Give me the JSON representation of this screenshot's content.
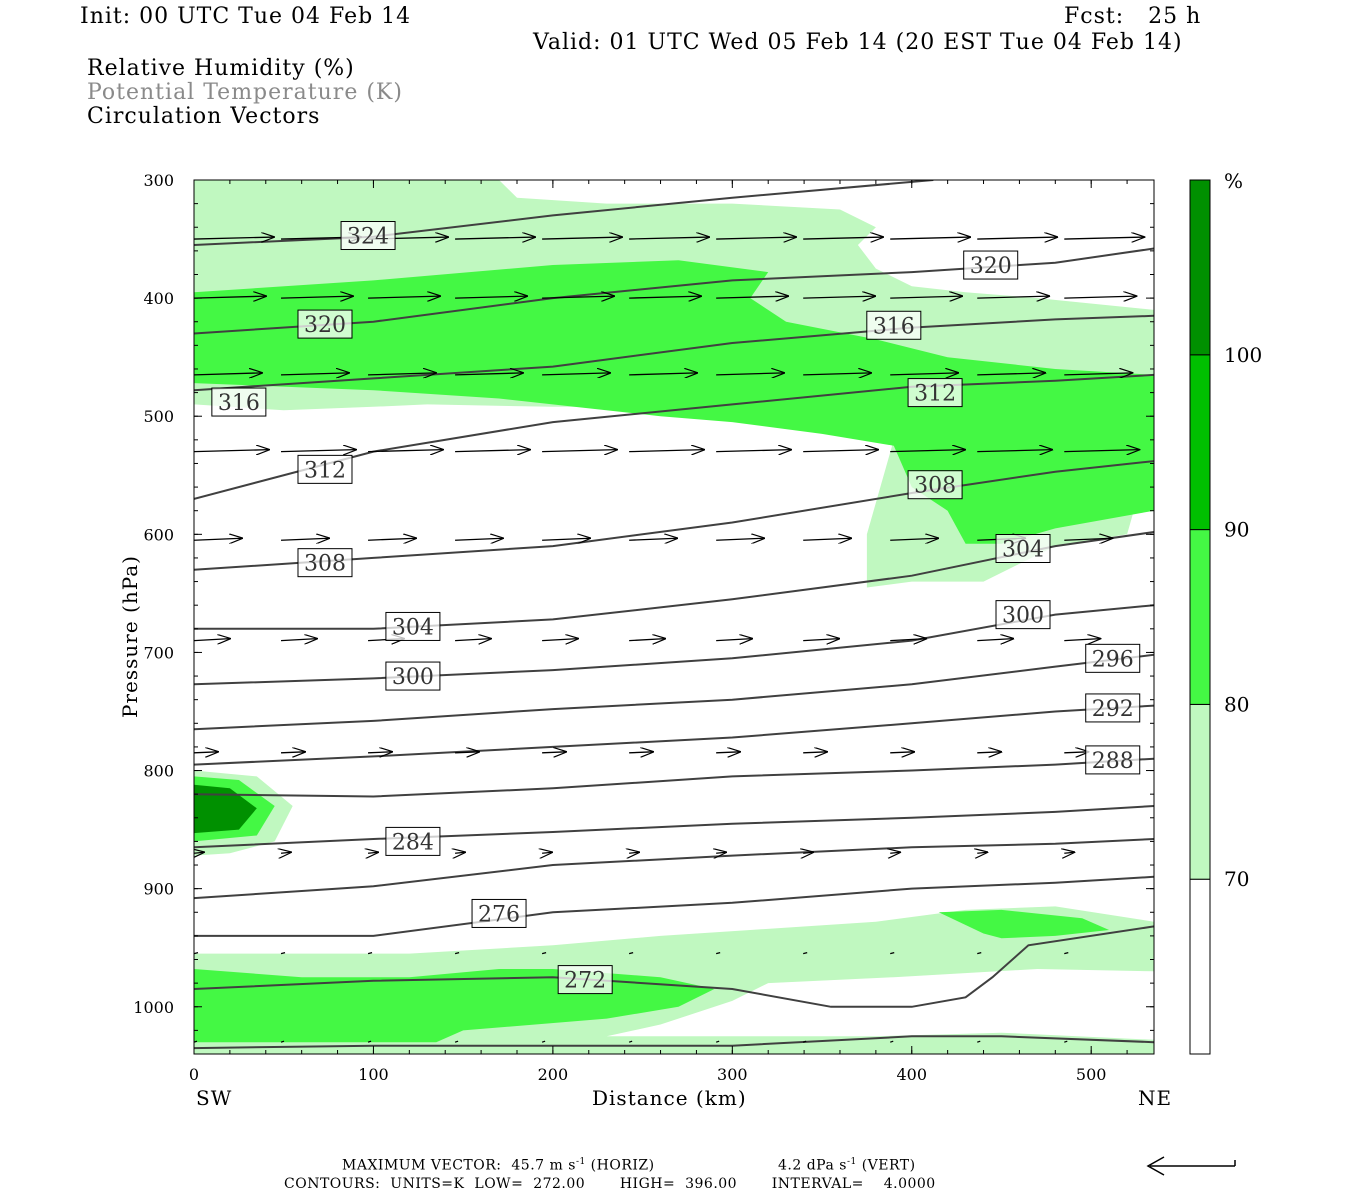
{
  "header": {
    "init": "Init: 00 UTC Tue 04 Feb 14",
    "fcst": "Fcst:   25 h",
    "valid": "Valid: 01 UTC Wed 05 Feb 14 (20 EST Tue 04 Feb 14)"
  },
  "legend": {
    "line1": "Relative Humidity (%)",
    "line2": "Potential Temperature (K)",
    "line3": "Circulation Vectors"
  },
  "footer": {
    "max_vector_label": "MAXIMUM VECTOR:",
    "max_horiz_value": "45.7 m s",
    "max_horiz_sup": "-1",
    "max_horiz_tag": "(HORIZ)",
    "max_vert_value": "4.2 dPa s",
    "max_vert_sup": "-1",
    "max_vert_tag": "(VERT)",
    "contours": "CONTOURS:  UNITS=K  LOW=  272.00       HIGH=  396.00       INTERVAL=    4.0000"
  },
  "colors": {
    "rh70": "#c0f8c0",
    "rh80": "#44f844",
    "rh90": "#00c000",
    "rh100": "#009000",
    "theta_line": "#404040"
  },
  "chart_data": {
    "type": "heatmap",
    "title": "",
    "xlabel": "Distance (km)",
    "ylabel": "Pressure (hPa)",
    "xlim": [
      0,
      535
    ],
    "ylim": [
      1040,
      300
    ],
    "y_scale": "linear (pressure, decreasing upward)",
    "x_ticks": [
      "0",
      "100",
      "200",
      "300",
      "400",
      "500"
    ],
    "y_ticks": [
      "300",
      "400",
      "500",
      "600",
      "700",
      "800",
      "900",
      "1000"
    ],
    "x_end_labels": {
      "left": "SW",
      "right": "NE"
    },
    "colorbar": {
      "unit": "%",
      "levels": [
        "70",
        "80",
        "90",
        "100"
      ],
      "colors": [
        "#c0f8c0",
        "#44f844",
        "#00c000",
        "#009000"
      ]
    },
    "theta_contours": [
      {
        "label": "324",
        "label_at": [
          97,
          347
        ],
        "points": [
          [
            0,
            355
          ],
          [
            100,
            348
          ],
          [
            200,
            330
          ],
          [
            300,
            315
          ],
          [
            412,
            300
          ]
        ]
      },
      {
        "label": "320",
        "label_at": [
          73,
          422
        ],
        "points": [
          [
            0,
            430
          ],
          [
            100,
            420
          ],
          [
            200,
            400
          ],
          [
            300,
            385
          ],
          [
            400,
            378
          ],
          [
            480,
            370
          ],
          [
            535,
            358
          ]
        ]
      },
      {
        "label": "320",
        "label_at": [
          444,
          372
        ]
      },
      {
        "label": "316",
        "label_at": [
          25,
          488
        ],
        "points": [
          [
            0,
            478
          ],
          [
            100,
            468
          ],
          [
            200,
            458
          ],
          [
            300,
            438
          ],
          [
            400,
            425
          ],
          [
            480,
            418
          ],
          [
            535,
            415
          ]
        ]
      },
      {
        "label": "316",
        "label_at": [
          390,
          423
        ]
      },
      {
        "label": "312",
        "label_at": [
          73,
          545
        ],
        "points": [
          [
            0,
            570
          ],
          [
            100,
            530
          ],
          [
            200,
            505
          ],
          [
            300,
            490
          ],
          [
            400,
            475
          ],
          [
            480,
            470
          ],
          [
            535,
            465
          ]
        ]
      },
      {
        "label": "312",
        "label_at": [
          413,
          480
        ]
      },
      {
        "label": "308",
        "label_at": [
          73,
          624
        ],
        "points": [
          [
            0,
            630
          ],
          [
            100,
            620
          ],
          [
            200,
            610
          ],
          [
            300,
            590
          ],
          [
            400,
            565
          ],
          [
            480,
            547
          ],
          [
            535,
            538
          ]
        ]
      },
      {
        "label": "308",
        "label_at": [
          413,
          558
        ]
      },
      {
        "label": "304",
        "label_at": [
          122,
          678
        ],
        "points": [
          [
            0,
            680
          ],
          [
            100,
            680
          ],
          [
            200,
            672
          ],
          [
            300,
            655
          ],
          [
            400,
            635
          ],
          [
            480,
            610
          ],
          [
            535,
            598
          ]
        ]
      },
      {
        "label": "304",
        "label_at": [
          462,
          612
        ]
      },
      {
        "label": "300",
        "label_at": [
          122,
          720
        ],
        "points": [
          [
            0,
            727
          ],
          [
            100,
            722
          ],
          [
            200,
            715
          ],
          [
            300,
            705
          ],
          [
            400,
            690
          ],
          [
            480,
            668
          ],
          [
            535,
            660
          ]
        ]
      },
      {
        "label": "300",
        "label_at": [
          462,
          668
        ]
      },
      {
        "label": "296",
        "label_at": [
          512,
          705
        ],
        "points": [
          [
            0,
            765
          ],
          [
            100,
            758
          ],
          [
            200,
            748
          ],
          [
            300,
            740
          ],
          [
            400,
            727
          ],
          [
            480,
            712
          ],
          [
            535,
            702
          ]
        ]
      },
      {
        "label": "292",
        "label_at": [
          512,
          747
        ],
        "points": [
          [
            0,
            795
          ],
          [
            100,
            788
          ],
          [
            200,
            780
          ],
          [
            300,
            772
          ],
          [
            400,
            760
          ],
          [
            480,
            750
          ],
          [
            535,
            745
          ]
        ]
      },
      {
        "label": "288",
        "label_at": [
          512,
          791
        ],
        "points": [
          [
            0,
            820
          ],
          [
            100,
            822
          ],
          [
            200,
            815
          ],
          [
            300,
            805
          ],
          [
            400,
            800
          ],
          [
            480,
            795
          ],
          [
            535,
            790
          ]
        ]
      },
      {
        "label": "284",
        "label_at": [
          122,
          860
        ],
        "points": [
          [
            0,
            865
          ],
          [
            100,
            858
          ],
          [
            200,
            852
          ],
          [
            300,
            845
          ],
          [
            400,
            840
          ],
          [
            480,
            835
          ],
          [
            535,
            830
          ]
        ]
      },
      {
        "label": "",
        "points": [
          [
            0,
            908
          ],
          [
            100,
            898
          ],
          [
            200,
            880
          ],
          [
            300,
            872
          ],
          [
            400,
            865
          ],
          [
            480,
            862
          ],
          [
            535,
            858
          ]
        ]
      },
      {
        "label": "276",
        "label_at": [
          170,
          921
        ],
        "points": [
          [
            0,
            940
          ],
          [
            100,
            940
          ],
          [
            200,
            920
          ],
          [
            300,
            912
          ],
          [
            400,
            900
          ],
          [
            480,
            895
          ],
          [
            535,
            890
          ]
        ]
      },
      {
        "label": "272",
        "label_at": [
          218,
          977
        ],
        "points": [
          [
            0,
            985
          ],
          [
            100,
            978
          ],
          [
            200,
            975
          ],
          [
            300,
            985
          ],
          [
            355,
            1000
          ],
          [
            400,
            1000
          ],
          [
            430,
            992
          ],
          [
            445,
            975
          ],
          [
            465,
            948
          ],
          [
            535,
            932
          ]
        ]
      },
      {
        "label": "",
        "points": [
          [
            0,
            1035
          ],
          [
            100,
            1033
          ],
          [
            200,
            1033
          ],
          [
            300,
            1033
          ],
          [
            400,
            1025
          ],
          [
            450,
            1025
          ],
          [
            535,
            1030
          ]
        ]
      }
    ],
    "rh_regions": [
      {
        "level": "70",
        "x": [
          0,
          535
        ],
        "p": [
          300,
          600
        ],
        "desc": "upper moist layer"
      },
      {
        "level": "80",
        "x": [
          0,
          535
        ],
        "p": [
          375,
          480
        ]
      },
      {
        "level": "80",
        "x": [
          380,
          535
        ],
        "p": [
          460,
          610
        ]
      },
      {
        "level": "70",
        "x": [
          0,
          55
        ],
        "p": [
          800,
          870
        ]
      },
      {
        "level": "100",
        "x": [
          0,
          35
        ],
        "p": [
          815,
          855
        ]
      },
      {
        "level": "70",
        "x": [
          0,
          535
        ],
        "p": [
          910,
          1035
        ]
      },
      {
        "level": "80",
        "x": [
          0,
          300
        ],
        "p": [
          960,
          1030
        ]
      }
    ],
    "vector_rows_hpa": [
      350,
      400,
      465,
      530,
      605,
      690,
      785,
      870,
      955,
      1030
    ]
  }
}
